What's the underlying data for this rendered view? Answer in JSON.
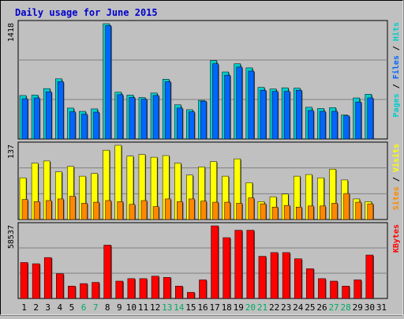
{
  "colors": {
    "background": "#c0c0c0",
    "title": "#0000cc",
    "hits": "#00cccc",
    "files": "#0066ff",
    "pages": "#00cccc",
    "visits": "#ffff00",
    "sites": "#ff8800",
    "kbytes": "#ff0000",
    "weekend_day": "#00aa66"
  },
  "chart_data": {
    "type": "bar",
    "title": "Daily usage for June 2015",
    "days": [
      "1",
      "2",
      "3",
      "4",
      "5",
      "6",
      "7",
      "8",
      "9",
      "10",
      "11",
      "12",
      "13",
      "14",
      "15",
      "16",
      "17",
      "18",
      "19",
      "20",
      "21",
      "22",
      "23",
      "24",
      "25",
      "26",
      "27",
      "28",
      "29",
      "30",
      "31"
    ],
    "weekend_days": [
      "6",
      "7",
      "13",
      "14",
      "20",
      "21",
      "27",
      "28"
    ],
    "panels": [
      {
        "name": "hits-files-pages",
        "max_label": "1418",
        "ymax": 1418,
        "legend": [
          {
            "text": "Pages",
            "color_key": "pages"
          },
          {
            "text": "Files",
            "color_key": "files"
          },
          {
            "text": "Hits",
            "color_key": "hits"
          }
        ],
        "series": [
          {
            "name": "Hits",
            "color_key": "hits",
            "values": [
              535,
              540,
              620,
              740,
              380,
              340,
              370,
              1418,
              575,
              540,
              510,
              565,
              735,
              420,
              360,
              475,
              965,
              825,
              925,
              875,
              635,
              615,
              630,
              625,
              390,
              375,
              385,
              295,
              505,
              550,
              0
            ]
          },
          {
            "name": "Files",
            "color_key": "files",
            "values": [
              495,
              505,
              580,
              705,
              335,
              305,
              330,
              1395,
              545,
              510,
              490,
              535,
              705,
              380,
              335,
              465,
              925,
              785,
              885,
              835,
              600,
              585,
              585,
              600,
              350,
              340,
              340,
              285,
              455,
              505,
              0
            ]
          }
        ]
      },
      {
        "name": "visits-sites",
        "max_label": "137",
        "ymax": 137,
        "legend": [
          {
            "text": "Sites",
            "color_key": "sites"
          },
          {
            "text": "Visits",
            "color_key": "visits"
          }
        ],
        "series": [
          {
            "name": "Visits",
            "color_key": "visits",
            "values": [
              77,
              104,
              108,
              88,
              98,
              80,
              85,
              128,
              137,
              117,
              120,
              115,
              118,
              104,
              82,
              97,
              107,
              80,
              112,
              68,
              33,
              42,
              47,
              80,
              83,
              77,
              93,
              73,
              38,
              33,
              0
            ]
          },
          {
            "name": "Sites",
            "color_key": "sites",
            "values": [
              37,
              33,
              35,
              38,
              43,
              30,
              32,
              35,
              33,
              28,
              35,
              24,
              38,
              33,
              38,
              34,
              32,
              32,
              30,
              40,
              29,
              23,
              26,
              23,
              25,
              25,
              30,
              48,
              32,
              29,
              0
            ]
          }
        ]
      },
      {
        "name": "kbytes",
        "max_label": "58537",
        "ymax": 58537,
        "legend": [
          {
            "text": "KBytes",
            "color_key": "kbytes"
          }
        ],
        "series": [
          {
            "name": "KBytes",
            "color_key": "kbytes",
            "values": [
              29000,
              28000,
              33000,
              20000,
              10000,
              12000,
              13000,
              43000,
              14000,
              16000,
              16000,
              18000,
              17000,
              10000,
              5000,
              15000,
              58537,
              49000,
              55000,
              55000,
              34000,
              37000,
              37000,
              32000,
              24000,
              16000,
              14000,
              10000,
              15000,
              35000,
              0
            ]
          }
        ]
      }
    ]
  }
}
